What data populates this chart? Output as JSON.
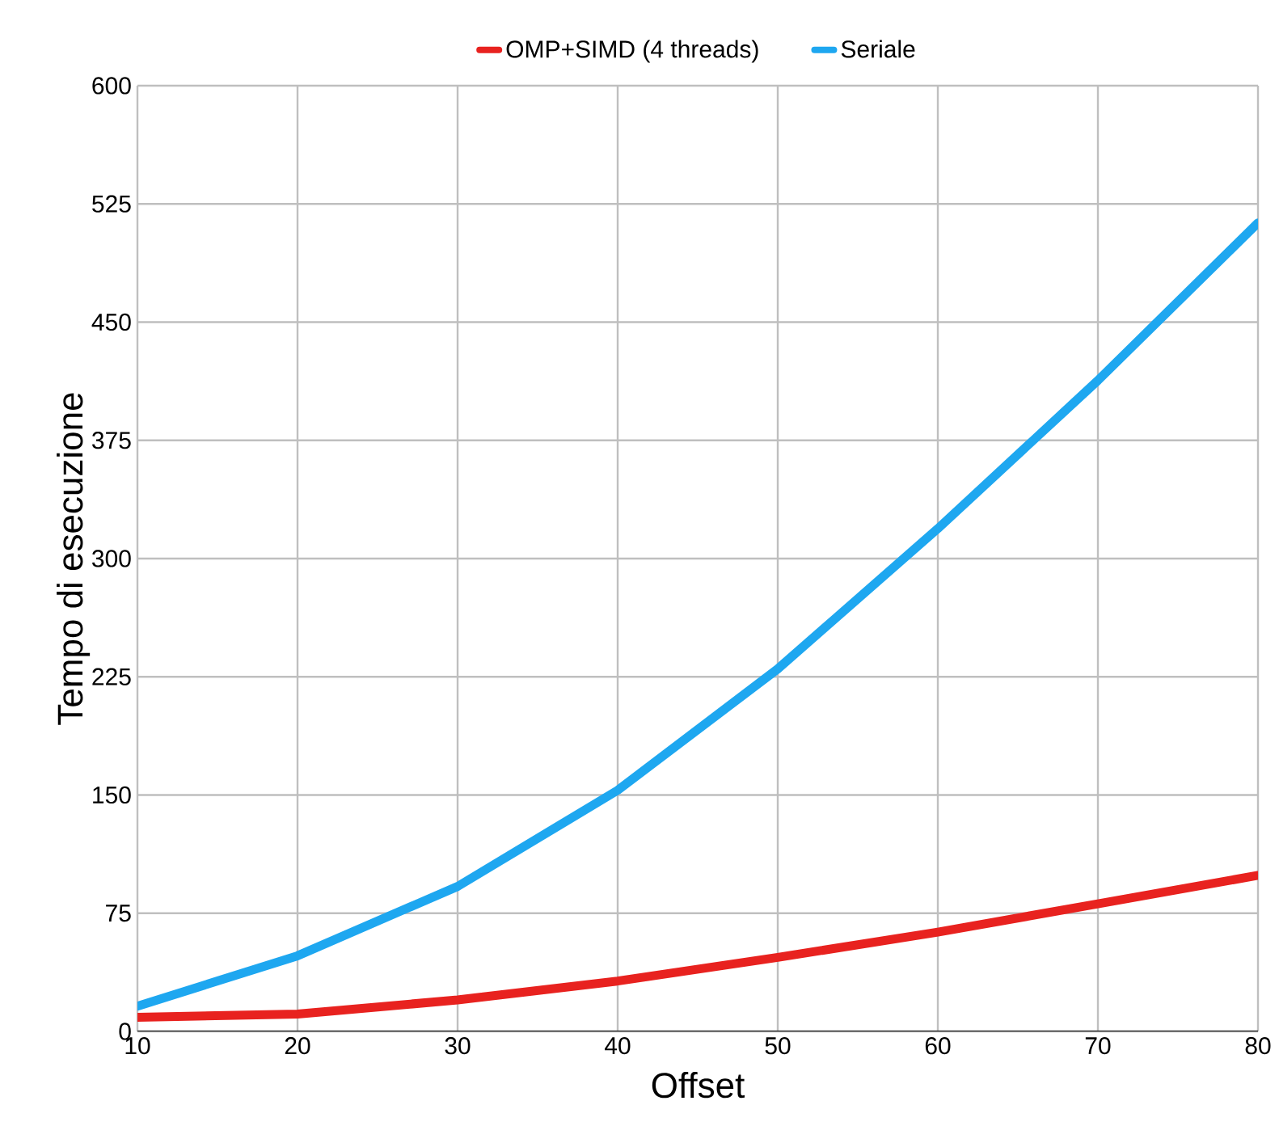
{
  "chart_data": {
    "type": "line",
    "xlabel": "Offset",
    "ylabel": "Tempo di esecuzione",
    "x": [
      10,
      20,
      30,
      40,
      50,
      60,
      70,
      80
    ],
    "series": [
      {
        "name": "OMP+SIMD (4 threads)",
        "color": "#e8221f",
        "values": [
          9,
          11,
          20,
          32,
          47,
          63,
          81,
          99
        ]
      },
      {
        "name": "Seriale",
        "color": "#1ea7f0",
        "values": [
          16,
          48,
          92,
          153,
          230,
          319,
          413,
          513
        ]
      }
    ],
    "xlim": [
      10,
      80
    ],
    "xticks": [
      10,
      20,
      30,
      40,
      50,
      60,
      70,
      80
    ],
    "ylim": [
      0,
      600
    ],
    "yticks": [
      0,
      75,
      150,
      225,
      300,
      375,
      450,
      525,
      600
    ],
    "grid": true,
    "legend": "top",
    "marker": "none",
    "line_style": "solid"
  }
}
